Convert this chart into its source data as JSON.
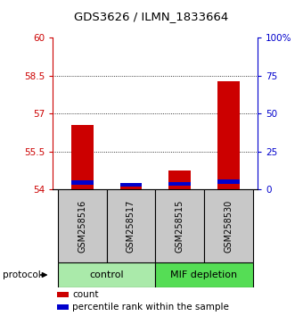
{
  "title": "GDS3626 / ILMN_1833664",
  "samples": [
    "GSM258516",
    "GSM258517",
    "GSM258515",
    "GSM258530"
  ],
  "red_tops": [
    56.55,
    54.18,
    54.75,
    58.28
  ],
  "blue_bottoms": [
    54.18,
    54.13,
    54.15,
    54.22
  ],
  "blue_tops": [
    54.35,
    54.27,
    54.3,
    54.42
  ],
  "bar_bottom": 54.0,
  "bar_width": 0.45,
  "ylim_left": [
    54,
    60
  ],
  "ylim_right": [
    0,
    100
  ],
  "yticks_left": [
    54,
    55.5,
    57,
    58.5,
    60
  ],
  "yticks_right": [
    0,
    25,
    50,
    75,
    100
  ],
  "ytick_labels_left": [
    "54",
    "55.5",
    "57",
    "58.5",
    "60"
  ],
  "ytick_labels_right": [
    "0",
    "25",
    "50",
    "75",
    "100%"
  ],
  "red_color": "#CC0000",
  "blue_color": "#0000CC",
  "bar_gray": "#C8C8C8",
  "control_color": "#AAEAAA",
  "mif_color": "#55DD55",
  "group_label_fontsize": 8,
  "tick_fontsize": 7.5,
  "title_fontsize": 9.5,
  "legend_fontsize": 7.5,
  "sample_fontsize": 7,
  "legend_items": [
    "count",
    "percentile rank within the sample"
  ],
  "legend_colors": [
    "#CC0000",
    "#0000CC"
  ]
}
